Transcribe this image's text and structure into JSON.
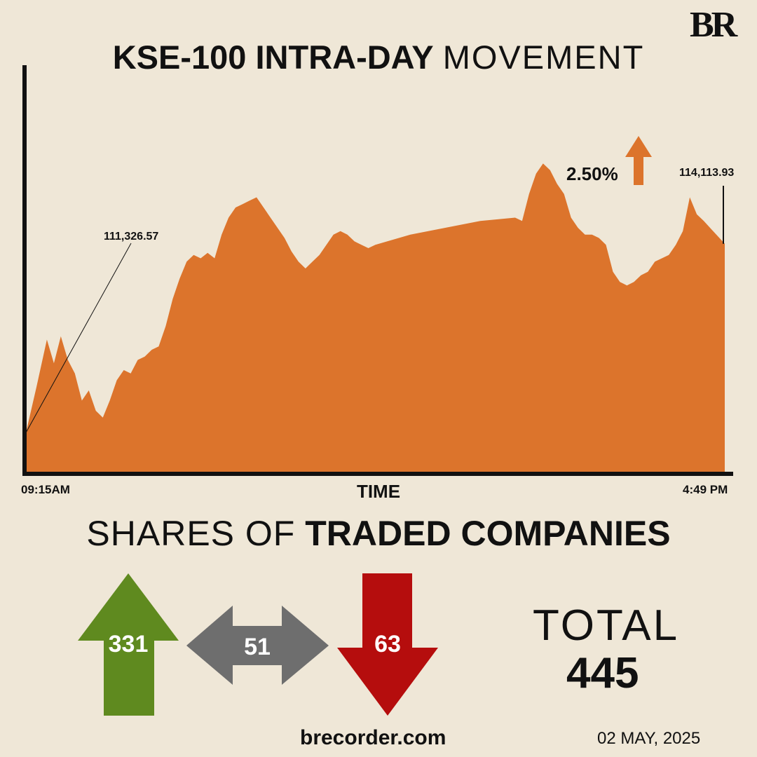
{
  "brand": {
    "logo_text": "BR"
  },
  "title": {
    "bold_part": "KSE-100 INTRA-DAY",
    "light_part": "MOVEMENT"
  },
  "colors": {
    "background": "#efe7d7",
    "area": "#dc742c",
    "axis": "#111111",
    "advance": "#5f8a1f",
    "unchanged": "#6e6e6e",
    "decline": "#b50d0d",
    "change_arrow": "#dc742c"
  },
  "chart_data": {
    "type": "area",
    "xlabel": "TIME",
    "x_start_label": "09:15AM",
    "x_end_label": "4:49 PM",
    "start_label": "111,326.57",
    "end_label": "114,113.93",
    "change_label": "2.50%",
    "change_direction": "up",
    "ylim": [
      110750,
      116750
    ],
    "start_value": 111326.57,
    "end_value": 114113.93,
    "grid": false,
    "legend": "none",
    "points": [
      [
        0,
        111326
      ],
      [
        1.5,
        112000
      ],
      [
        3,
        112700
      ],
      [
        4,
        112350
      ],
      [
        5,
        112750
      ],
      [
        6,
        112400
      ],
      [
        7,
        112200
      ],
      [
        8,
        111800
      ],
      [
        9,
        111950
      ],
      [
        10,
        111650
      ],
      [
        11,
        111550
      ],
      [
        12,
        111800
      ],
      [
        13,
        112100
      ],
      [
        14,
        112250
      ],
      [
        15,
        112200
      ],
      [
        16,
        112400
      ],
      [
        17,
        112450
      ],
      [
        18,
        112550
      ],
      [
        19,
        112600
      ],
      [
        20,
        112900
      ],
      [
        21,
        113300
      ],
      [
        22,
        113600
      ],
      [
        23,
        113850
      ],
      [
        24,
        113950
      ],
      [
        25,
        113900
      ],
      [
        26,
        113980
      ],
      [
        27,
        113900
      ],
      [
        28,
        114250
      ],
      [
        29,
        114500
      ],
      [
        30,
        114650
      ],
      [
        31,
        114700
      ],
      [
        32,
        114750
      ],
      [
        33,
        114800
      ],
      [
        34,
        114650
      ],
      [
        35,
        114500
      ],
      [
        36,
        114350
      ],
      [
        37,
        114200
      ],
      [
        38,
        114000
      ],
      [
        39,
        113850
      ],
      [
        40,
        113750
      ],
      [
        41,
        113850
      ],
      [
        42,
        113950
      ],
      [
        43,
        114100
      ],
      [
        44,
        114250
      ],
      [
        45,
        114300
      ],
      [
        46,
        114250
      ],
      [
        47,
        114150
      ],
      [
        48,
        114100
      ],
      [
        49,
        114050
      ],
      [
        50,
        114100
      ],
      [
        55,
        114250
      ],
      [
        60,
        114350
      ],
      [
        65,
        114450
      ],
      [
        70,
        114500
      ],
      [
        71,
        114450
      ],
      [
        72,
        114850
      ],
      [
        73,
        115150
      ],
      [
        74,
        115300
      ],
      [
        75,
        115200
      ],
      [
        76,
        115000
      ],
      [
        77,
        114850
      ],
      [
        78,
        114500
      ],
      [
        79,
        114350
      ],
      [
        80,
        114250
      ],
      [
        81,
        114250
      ],
      [
        82,
        114200
      ],
      [
        83,
        114100
      ],
      [
        84,
        113700
      ],
      [
        85,
        113550
      ],
      [
        86,
        113500
      ],
      [
        87,
        113550
      ],
      [
        88,
        113650
      ],
      [
        89,
        113700
      ],
      [
        90,
        113850
      ],
      [
        91,
        113900
      ],
      [
        92,
        113950
      ],
      [
        93,
        114100
      ],
      [
        94,
        114300
      ],
      [
        95,
        114800
      ],
      [
        96,
        114550
      ],
      [
        97,
        114450
      ],
      [
        100,
        114114
      ]
    ]
  },
  "shares": {
    "title_light": "SHARES OF",
    "title_bold": "TRADED COMPANIES",
    "advanced": "331",
    "unchanged": "51",
    "declined": "63",
    "total_label": "TOTAL",
    "total_value": "445"
  },
  "footer": {
    "website": "brecorder.com",
    "date": "02 MAY, 2025"
  }
}
